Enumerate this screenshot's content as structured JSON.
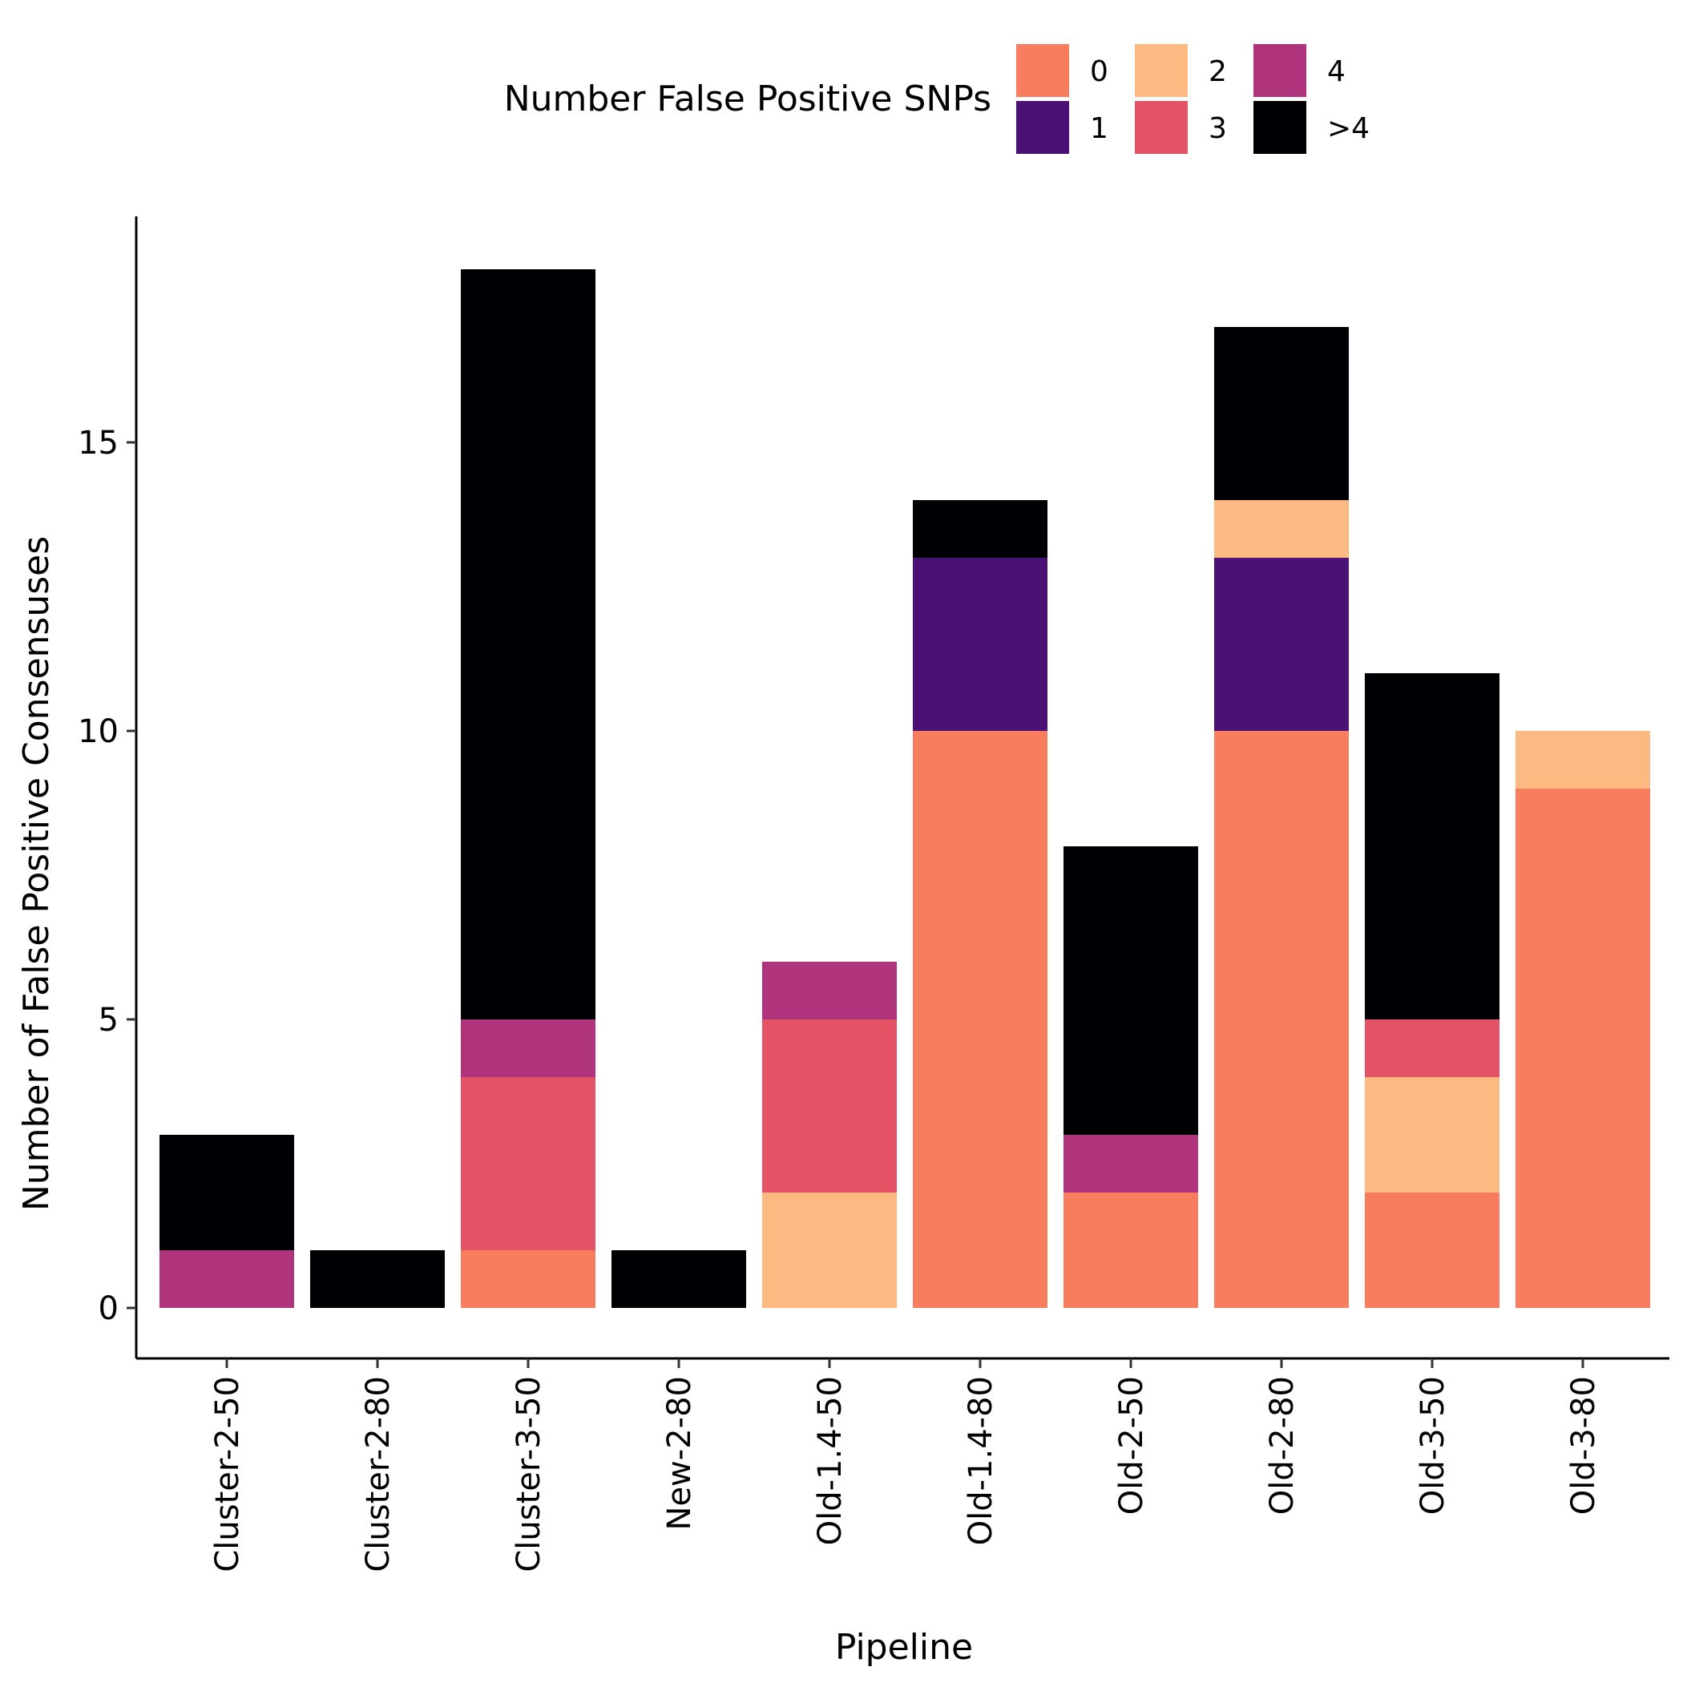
{
  "chart_data": {
    "type": "bar",
    "stacked": true,
    "xlabel": "Pipeline",
    "ylabel": "Number of False Positive Consensuses",
    "ylim": [
      0,
      18
    ],
    "yticks": [
      0,
      5,
      10,
      15
    ],
    "grid": false,
    "legend_placement": "top",
    "legend_title": "Number False Positive SNPs",
    "categories": [
      "Cluster-2-50",
      "Cluster-2-80",
      "Cluster-3-50",
      "New-2-80",
      "Old-1.4-50",
      "Old-1.4-80",
      "Old-2-50",
      "Old-2-80",
      "Old-3-50",
      "Old-3-80"
    ],
    "series": [
      {
        "name": "0",
        "color": "#F87D5E",
        "values": [
          0,
          0,
          1,
          0,
          0,
          10,
          2,
          10,
          2,
          9
        ]
      },
      {
        "name": "1",
        "color": "#4C1175",
        "values": [
          0,
          0,
          0,
          0,
          0,
          3,
          0,
          3,
          0,
          0
        ]
      },
      {
        "name": "2",
        "color": "#FCBA82",
        "values": [
          0,
          0,
          0,
          0,
          2,
          0,
          0,
          1,
          2,
          1
        ]
      },
      {
        "name": "3",
        "color": "#E45266",
        "values": [
          0,
          0,
          3,
          0,
          3,
          0,
          0,
          0,
          1,
          0
        ]
      },
      {
        "name": "4",
        "color": "#AF347B",
        "values": [
          1,
          0,
          1,
          0,
          1,
          0,
          1,
          0,
          0,
          0
        ]
      },
      {
        "name": ">4",
        "color": "#000004",
        "values": [
          2,
          1,
          13,
          1,
          0,
          1,
          5,
          3,
          6,
          0
        ]
      }
    ]
  }
}
